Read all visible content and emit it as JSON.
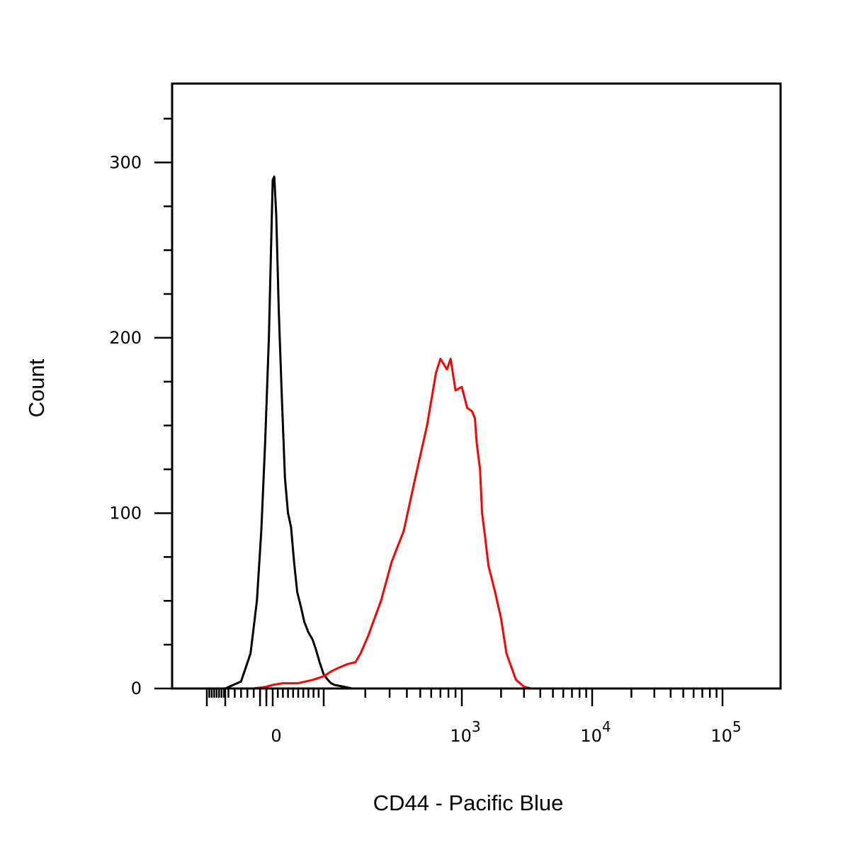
{
  "chart_data": {
    "type": "line",
    "title": "",
    "xlabel": "CD44 - Pacific Blue",
    "ylabel": "Count",
    "x_scale": "biexponential",
    "xlim": [
      -150,
      200000
    ],
    "ylim": [
      0,
      345
    ],
    "grid": false,
    "legend": "none",
    "x_ticks": [
      {
        "value": 0,
        "label": "0"
      },
      {
        "value": 1000,
        "label": "10",
        "exponent": "3"
      },
      {
        "value": 10000,
        "label": "10",
        "exponent": "4"
      },
      {
        "value": 100000,
        "label": "10",
        "exponent": "5"
      }
    ],
    "y_ticks": [
      {
        "value": 0,
        "label": "0"
      },
      {
        "value": 100,
        "label": "100"
      },
      {
        "value": 200,
        "label": "200"
      },
      {
        "value": 300,
        "label": "300"
      }
    ],
    "series": [
      {
        "color": "#000000",
        "x": [
          -75,
          -50,
          -35,
          -25,
          -18,
          -12,
          -6,
          -2,
          0,
          3,
          7,
          12,
          18,
          24,
          30,
          36,
          42,
          48,
          55,
          62,
          70,
          78,
          85,
          92,
          100,
          107,
          113,
          120,
          140,
          160,
          175
        ],
        "y": [
          0,
          4,
          20,
          50,
          90,
          140,
          200,
          260,
          290,
          292,
          270,
          215,
          165,
          120,
          100,
          92,
          72,
          55,
          47,
          38,
          32,
          28,
          22,
          15,
          8,
          5,
          3,
          2,
          1,
          0,
          0
        ]
      },
      {
        "color": "#ff0000",
        "x": [
          -30,
          -10,
          0,
          20,
          50,
          80,
          100,
          115,
          130,
          150,
          170,
          185,
          210,
          260,
          310,
          380,
          460,
          560,
          650,
          700,
          780,
          830,
          900,
          1000,
          1100,
          1200,
          1260,
          1300,
          1380,
          1430,
          1500,
          1600,
          1800,
          2000,
          2200,
          2600,
          3000,
          3400,
          3700,
          4000,
          5000,
          10000,
          100000,
          200000
        ],
        "y": [
          0,
          1,
          2,
          3,
          3,
          5,
          7,
          10,
          12,
          14,
          15,
          20,
          30,
          50,
          72,
          90,
          120,
          150,
          180,
          188,
          182,
          188,
          170,
          172,
          160,
          158,
          154,
          140,
          125,
          100,
          88,
          70,
          55,
          40,
          20,
          5,
          1,
          0,
          0,
          0,
          0,
          0,
          0,
          0
        ]
      }
    ]
  }
}
